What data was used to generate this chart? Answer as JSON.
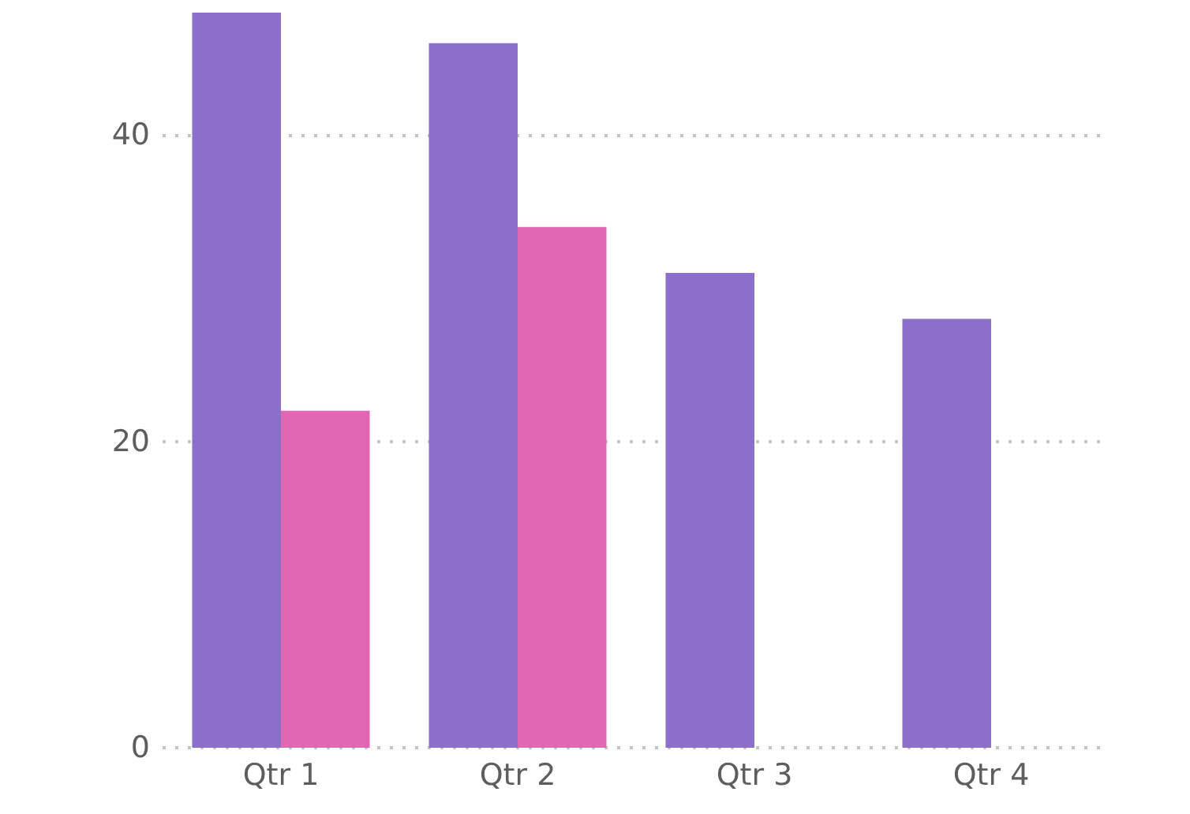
{
  "chart_data": {
    "type": "bar",
    "categories": [
      "Qtr 1",
      "Qtr 2",
      "Qtr 3",
      "Qtr 4"
    ],
    "series": [
      {
        "color": "#8c6fcb",
        "values": [
          48,
          46,
          31,
          28
        ]
      },
      {
        "color": "#e366b5",
        "values": [
          22,
          34,
          null,
          null
        ]
      }
    ],
    "ylim": [
      0,
      48
    ],
    "yticks": [
      0,
      20,
      40
    ],
    "grid": "y"
  }
}
